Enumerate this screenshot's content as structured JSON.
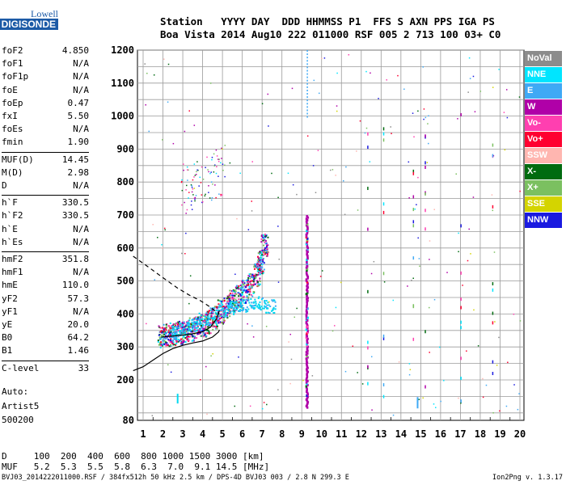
{
  "logo": {
    "line1": "Lowell",
    "line2": "DIGISONDE"
  },
  "header": {
    "row1": "Station   YYYY DAY  DDD HHMMSS P1  FFS S AXN PPS IGA PS",
    "row2": "Boa Vista 2014 Aug10 222 011000 RSF 005 2 713 100 03+ C0"
  },
  "params": {
    "group1": [
      {
        "k": "foF2",
        "v": "4.850"
      },
      {
        "k": "foF1",
        "v": "N/A"
      },
      {
        "k": "foF1p",
        "v": "N/A"
      },
      {
        "k": "foE",
        "v": "N/A"
      },
      {
        "k": "foEp",
        "v": "0.47"
      },
      {
        "k": "fxI",
        "v": "5.50"
      },
      {
        "k": "foEs",
        "v": "N/A"
      },
      {
        "k": "fmin",
        "v": "1.90"
      }
    ],
    "group2": [
      {
        "k": "MUF(D)",
        "v": "14.45"
      },
      {
        "k": "M(D)",
        "v": "2.98"
      },
      {
        "k": "D",
        "v": "N/A"
      }
    ],
    "group3": [
      {
        "k": "h`F",
        "v": "330.5"
      },
      {
        "k": "h`F2",
        "v": "330.5"
      },
      {
        "k": "h`E",
        "v": "N/A"
      },
      {
        "k": "h`Es",
        "v": "N/A"
      }
    ],
    "group4": [
      {
        "k": "hmF2",
        "v": "351.8"
      },
      {
        "k": "hmF1",
        "v": "N/A"
      },
      {
        "k": "hmE",
        "v": "110.0"
      },
      {
        "k": "yF2",
        "v": "57.3"
      },
      {
        "k": "yF1",
        "v": "N/A"
      },
      {
        "k": "yE",
        "v": "20.0"
      },
      {
        "k": "B0",
        "v": "64.2"
      },
      {
        "k": "B1",
        "v": "1.46"
      }
    ],
    "group5": [
      {
        "k": "C-level",
        "v": "33"
      }
    ]
  },
  "auto": {
    "line1": "Auto:",
    "line2": "Artist5",
    "line3": "500200"
  },
  "muf_table": {
    "row_d": "D     100  200  400  600  800 1000 1500 3000 [km]",
    "row_muf": "MUF   5.2  5.3  5.5  5.8  6.3  7.0  9.1 14.5 [MHz]"
  },
  "footer": {
    "left": "BVJ03_2014222011000.RSF / 384fx512h 50 kHz 2.5 km / DPS-4D BVJ03 003 / 2.8 N 299.3 E",
    "right": "Ion2Png v. 1.3.17"
  },
  "legend": [
    {
      "label": "NoVal",
      "bg": "#8c8c8c",
      "fg": "#ffffff"
    },
    {
      "label": "NNE",
      "bg": "#00e5ff",
      "fg": "#ffffff"
    },
    {
      "label": "E",
      "bg": "#3fa9f5",
      "fg": "#ffffff"
    },
    {
      "label": "W",
      "bg": "#b000a8",
      "fg": "#ffffff"
    },
    {
      "label": "Vo-",
      "bg": "#ff3fb0",
      "fg": "#ffffff"
    },
    {
      "label": "Vo+",
      "bg": "#ff0030",
      "fg": "#ffffff"
    },
    {
      "label": "SSW",
      "bg": "#ffb6b0",
      "fg": "#ffffff"
    },
    {
      "label": "X-",
      "bg": "#006b10",
      "fg": "#ffffff"
    },
    {
      "label": "X+",
      "bg": "#7bc060",
      "fg": "#ffffff"
    },
    {
      "label": "SSE",
      "bg": "#d4d400",
      "fg": "#ffffff"
    },
    {
      "label": "NNW",
      "bg": "#1a1ae0",
      "fg": "#ffffff"
    }
  ],
  "chart_data": {
    "type": "scatter",
    "title": "",
    "xlabel": "",
    "ylabel": "",
    "xlim": [
      0.5,
      20.2
    ],
    "ylim": [
      80,
      1200
    ],
    "x_ticks": [
      1,
      2,
      3,
      4,
      5,
      6,
      7,
      8,
      9,
      10,
      11,
      12,
      13,
      14,
      15,
      16,
      17,
      18,
      19,
      20
    ],
    "y_ticks": [
      80,
      200,
      300,
      400,
      500,
      600,
      700,
      800,
      900,
      1000,
      1100,
      1200
    ],
    "grid": true,
    "o_trace_echoes": [
      {
        "x": 1.9,
        "y": 335
      },
      {
        "x": 2.2,
        "y": 338
      },
      {
        "x": 2.5,
        "y": 342
      },
      {
        "x": 2.8,
        "y": 345
      },
      {
        "x": 3.1,
        "y": 350
      },
      {
        "x": 3.4,
        "y": 355
      },
      {
        "x": 3.7,
        "y": 360
      },
      {
        "x": 4.0,
        "y": 368
      },
      {
        "x": 4.3,
        "y": 378
      },
      {
        "x": 4.6,
        "y": 392
      },
      {
        "x": 4.9,
        "y": 410
      },
      {
        "x": 5.2,
        "y": 425
      },
      {
        "x": 5.5,
        "y": 440
      },
      {
        "x": 5.8,
        "y": 455
      },
      {
        "x": 6.1,
        "y": 470
      },
      {
        "x": 6.4,
        "y": 490
      },
      {
        "x": 6.7,
        "y": 520
      },
      {
        "x": 6.9,
        "y": 560
      },
      {
        "x": 7.1,
        "y": 610
      }
    ],
    "x_trace_echoes": [
      {
        "x": 2.6,
        "y": 345
      },
      {
        "x": 3.0,
        "y": 355
      },
      {
        "x": 3.5,
        "y": 370
      },
      {
        "x": 4.0,
        "y": 385
      },
      {
        "x": 4.5,
        "y": 400
      },
      {
        "x": 5.0,
        "y": 412
      },
      {
        "x": 5.5,
        "y": 420
      },
      {
        "x": 6.0,
        "y": 428
      },
      {
        "x": 6.5,
        "y": 432
      },
      {
        "x": 7.0,
        "y": 435
      },
      {
        "x": 7.4,
        "y": 425
      }
    ],
    "profile_curve": [
      {
        "x": 0.5,
        "y": 228
      },
      {
        "x": 1.0,
        "y": 240
      },
      {
        "x": 1.5,
        "y": 260
      },
      {
        "x": 2.0,
        "y": 280
      },
      {
        "x": 2.5,
        "y": 295
      },
      {
        "x": 3.0,
        "y": 305
      },
      {
        "x": 3.5,
        "y": 312
      },
      {
        "x": 4.0,
        "y": 318
      },
      {
        "x": 4.5,
        "y": 330
      },
      {
        "x": 4.8,
        "y": 345
      },
      {
        "x": 4.85,
        "y": 352
      }
    ],
    "o_trace_fit": [
      {
        "x": 1.9,
        "y": 330
      },
      {
        "x": 2.5,
        "y": 333
      },
      {
        "x": 3.0,
        "y": 336
      },
      {
        "x": 3.5,
        "y": 340
      },
      {
        "x": 4.0,
        "y": 346
      },
      {
        "x": 4.4,
        "y": 360
      },
      {
        "x": 4.7,
        "y": 385
      },
      {
        "x": 4.85,
        "y": 410
      }
    ],
    "topside_extrapolation": [
      {
        "x": 0.5,
        "y": 575
      },
      {
        "x": 1.2,
        "y": 545
      },
      {
        "x": 2.0,
        "y": 510
      },
      {
        "x": 2.7,
        "y": 480
      },
      {
        "x": 3.3,
        "y": 458
      },
      {
        "x": 3.9,
        "y": 440
      },
      {
        "x": 4.4,
        "y": 420
      },
      {
        "x": 4.85,
        "y": 400
      }
    ]
  }
}
